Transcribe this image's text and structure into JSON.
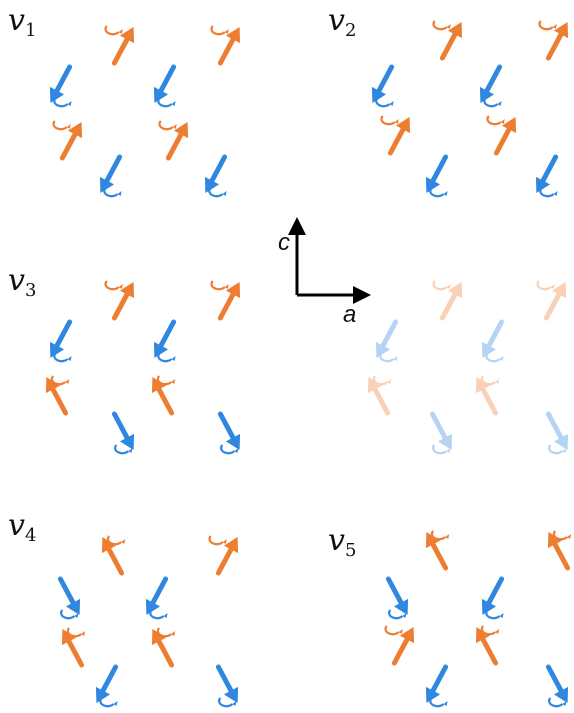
{
  "colors": {
    "orange": "#ED7D31",
    "blue": "#2F87E0",
    "axis": "#000000"
  },
  "axes": {
    "vertical_label": "c",
    "horizontal_label": "a"
  },
  "panels": [
    {
      "id": "v1",
      "label_base": "v",
      "label_sub": "1",
      "faded": false
    },
    {
      "id": "v2",
      "label_base": "v",
      "label_sub": "2",
      "faded": false
    },
    {
      "id": "v3",
      "label_base": "v",
      "label_sub": "3",
      "faded": false
    },
    {
      "id": "v3-faded",
      "faded": true
    },
    {
      "id": "v4",
      "label_base": "v",
      "label_sub": "4",
      "faded": false
    },
    {
      "id": "v5",
      "label_base": "v",
      "label_sub": "5",
      "faded": false
    }
  ]
}
